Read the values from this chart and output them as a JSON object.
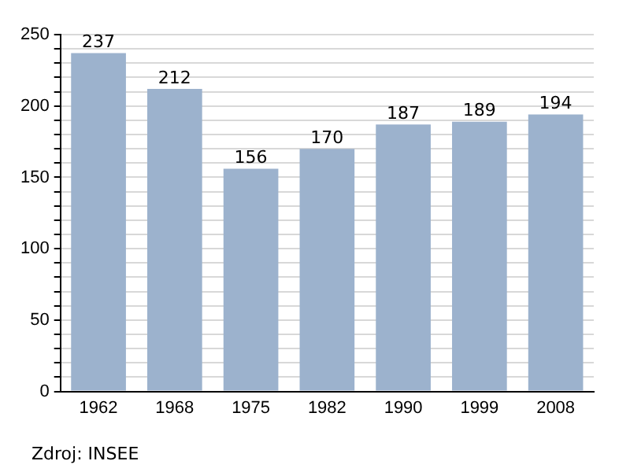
{
  "chart_data": {
    "type": "bar",
    "categories": [
      "1962",
      "1968",
      "1975",
      "1982",
      "1990",
      "1999",
      "2008"
    ],
    "values": [
      237,
      212,
      156,
      170,
      187,
      189,
      194
    ],
    "color": "#9cb2cd",
    "ylim": [
      0,
      250
    ],
    "yticks": [
      0,
      {
        "value": 10,
        "label": null
      },
      {
        "value": 20,
        "label": null
      },
      {
        "value": 30,
        "label": null
      },
      {
        "value": 40,
        "label": null
      },
      50,
      {
        "value": 60,
        "label": null
      },
      {
        "value": 70,
        "label": null
      },
      {
        "value": 80,
        "label": null
      },
      {
        "value": 90,
        "label": null
      },
      100,
      {
        "value": 110,
        "label": null
      },
      {
        "value": 120,
        "label": null
      },
      {
        "value": 130,
        "label": null
      },
      {
        "value": 140,
        "label": null
      },
      150,
      {
        "value": 160,
        "label": null
      },
      {
        "value": 170,
        "label": null
      },
      {
        "value": 180,
        "label": null
      },
      {
        "value": 190,
        "label": null
      },
      200,
      {
        "value": 210,
        "label": null
      },
      {
        "value": 220,
        "label": null
      },
      {
        "value": 230,
        "label": null
      },
      {
        "value": 240,
        "label": null
      },
      250
    ],
    "grid": "y",
    "data_labels": true,
    "annotations": [
      "Zdroj: INSEE"
    ]
  }
}
